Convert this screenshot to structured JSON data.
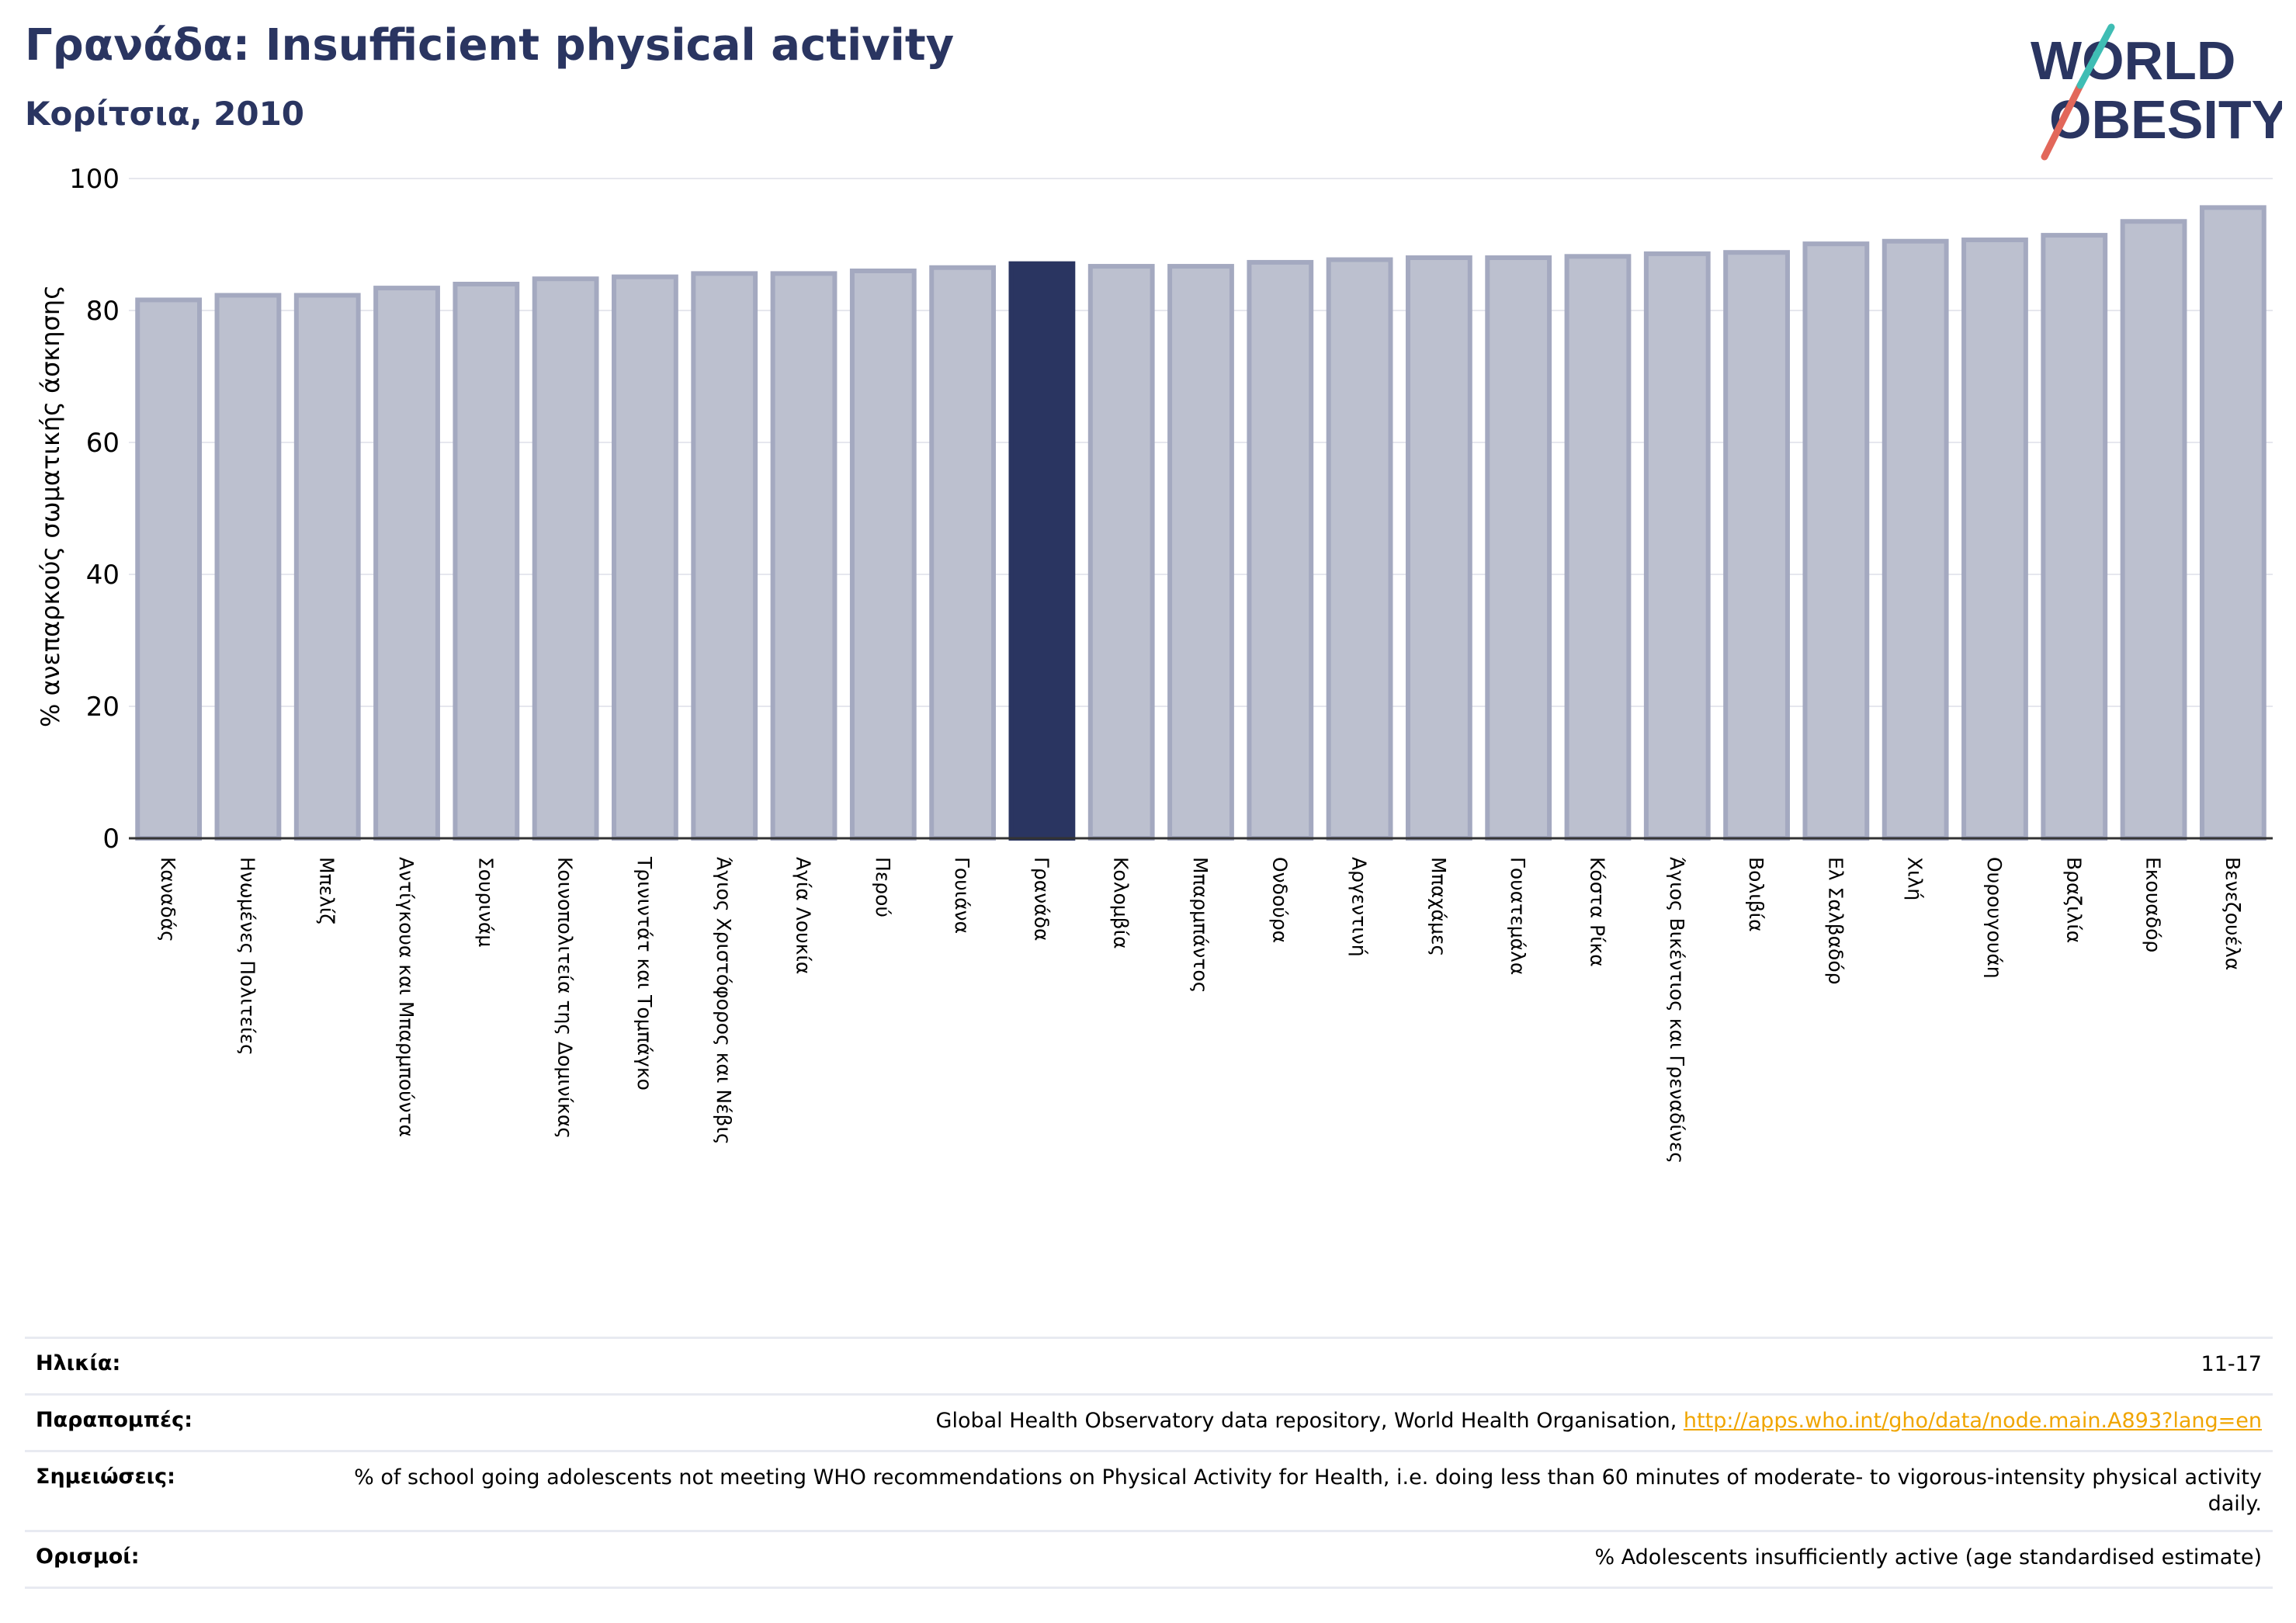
{
  "header": {
    "title": "Γρανάδα: Insufficient physical activity",
    "subtitle": "Κορίτσια, 2010"
  },
  "logo": {
    "line1": "WORLD",
    "line2": "OBESITY"
  },
  "colors": {
    "bar": "#bcc0cf",
    "bar_edge": "#a4a9c0",
    "highlight": "#2a3561",
    "grid": "#e6e7ee",
    "link": "#f0a500"
  },
  "chart_data": {
    "type": "bar",
    "title": "Γρανάδα: Insufficient physical activity",
    "subtitle": "Κορίτσια, 2010",
    "xlabel": "",
    "ylabel": "% ανεπαρκούς σωματικής άσκησης",
    "ylim": [
      0,
      100
    ],
    "yticks": [
      0,
      20,
      40,
      60,
      80,
      100
    ],
    "grid": true,
    "highlight": "Γρανάδα",
    "categories": [
      "Καναδάς",
      "Ηνωμένες Πολιτείες",
      "Μπελίζ",
      "Αντίγκουα και Μπαρμπούντα",
      "Σουρινάμ",
      "Κοινοπολιτεία της Δομινίκας",
      "Τρινιντάτ και Τομπάγκο",
      "Άγιος Χριστόφορος και Νέβις",
      "Αγία Λουκία",
      "Περού",
      "Γουιάνα",
      "Γρανάδα",
      "Κολομβία",
      "Μπαρμπάντος",
      "Ονδούρα",
      "Αργεντινή",
      "Μπαχάμες",
      "Γουατεμάλα",
      "Κόστα Ρίκα",
      "Άγιος Βικέντιος και Γρεναδίνες",
      "Βολιβία",
      "Ελ Σαλβαδόρ",
      "Χιλή",
      "Ουρουγουάη",
      "Βραζιλία",
      "Εκουαδόρ",
      "Βενεζουέλα"
    ],
    "values": [
      81.6,
      82.3,
      82.3,
      83.4,
      84.0,
      84.8,
      85.1,
      85.6,
      85.6,
      86.0,
      86.5,
      87.1,
      86.7,
      86.7,
      87.3,
      87.7,
      88.0,
      88.0,
      88.2,
      88.6,
      88.8,
      90.1,
      90.5,
      90.7,
      91.4,
      93.5,
      95.6
    ]
  },
  "footer": {
    "rows": [
      {
        "label": "Ηλικία:",
        "value": "11-17"
      },
      {
        "label": "Παραπομπές:",
        "value": "Global Health Observatory data repository, World Health Organisation, ",
        "link": "http://apps.who.int/gho/data/node.main.A893?lang=en"
      },
      {
        "label": "Σημειώσεις:",
        "value": "% of school going adolescents not meeting WHO recommendations on Physical Activity for Health, i.e. doing less than 60 minutes of moderate- to vigorous-intensity physical activity daily."
      },
      {
        "label": "Ορισμοί:",
        "value": "% Adolescents insufficiently active (age standardised estimate)"
      }
    ]
  }
}
